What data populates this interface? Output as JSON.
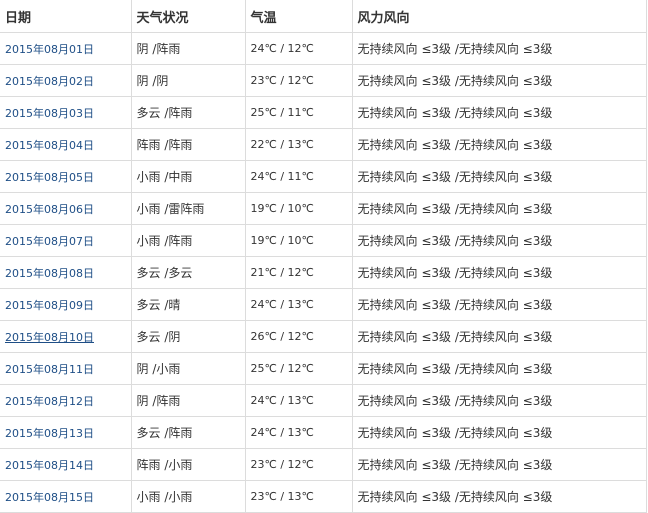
{
  "header": {
    "date": "日期",
    "weather": "天气状况",
    "temp": "气温",
    "wind": "风力风向"
  },
  "colors": {
    "link": "#1e4e86",
    "border": "#dcdcdc",
    "text": "#333333"
  },
  "rows": [
    {
      "date": "2015年08月01日",
      "weather": "阴 /阵雨",
      "temp": "24℃ / 12℃",
      "wind": "无持续风向 ≤3级 /无持续风向 ≤3级"
    },
    {
      "date": "2015年08月02日",
      "weather": "阴 /阴",
      "temp": "23℃ / 12℃",
      "wind": "无持续风向 ≤3级 /无持续风向 ≤3级"
    },
    {
      "date": "2015年08月03日",
      "weather": "多云 /阵雨",
      "temp": "25℃ / 11℃",
      "wind": "无持续风向 ≤3级 /无持续风向 ≤3级"
    },
    {
      "date": "2015年08月04日",
      "weather": "阵雨 /阵雨",
      "temp": "22℃ / 13℃",
      "wind": "无持续风向 ≤3级 /无持续风向 ≤3级"
    },
    {
      "date": "2015年08月05日",
      "weather": "小雨 /中雨",
      "temp": "24℃ / 11℃",
      "wind": "无持续风向 ≤3级 /无持续风向 ≤3级"
    },
    {
      "date": "2015年08月06日",
      "weather": "小雨 /雷阵雨",
      "temp": "19℃ / 10℃",
      "wind": "无持续风向 ≤3级 /无持续风向 ≤3级"
    },
    {
      "date": "2015年08月07日",
      "weather": "小雨 /阵雨",
      "temp": "19℃ / 10℃",
      "wind": "无持续风向 ≤3级 /无持续风向 ≤3级"
    },
    {
      "date": "2015年08月08日",
      "weather": "多云 /多云",
      "temp": "21℃ / 12℃",
      "wind": "无持续风向 ≤3级 /无持续风向 ≤3级"
    },
    {
      "date": "2015年08月09日",
      "weather": "多云 /晴",
      "temp": "24℃ / 13℃",
      "wind": "无持续风向 ≤3级 /无持续风向 ≤3级"
    },
    {
      "date": "2015年08月10日",
      "weather": "多云 /阴",
      "temp": "26℃ / 12℃",
      "wind": "无持续风向 ≤3级 /无持续风向 ≤3级"
    },
    {
      "date": "2015年08月11日",
      "weather": "阴 /小雨",
      "temp": "25℃ / 12℃",
      "wind": "无持续风向 ≤3级 /无持续风向 ≤3级"
    },
    {
      "date": "2015年08月12日",
      "weather": "阴 /阵雨",
      "temp": "24℃ / 13℃",
      "wind": "无持续风向 ≤3级 /无持续风向 ≤3级"
    },
    {
      "date": "2015年08月13日",
      "weather": "多云 /阵雨",
      "temp": "24℃ / 13℃",
      "wind": "无持续风向 ≤3级 /无持续风向 ≤3级"
    },
    {
      "date": "2015年08月14日",
      "weather": "阵雨 /小雨",
      "temp": "23℃ / 12℃",
      "wind": "无持续风向 ≤3级 /无持续风向 ≤3级"
    },
    {
      "date": "2015年08月15日",
      "weather": "小雨 /小雨",
      "temp": "23℃ / 13℃",
      "wind": "无持续风向 ≤3级 /无持续风向 ≤3级"
    }
  ]
}
